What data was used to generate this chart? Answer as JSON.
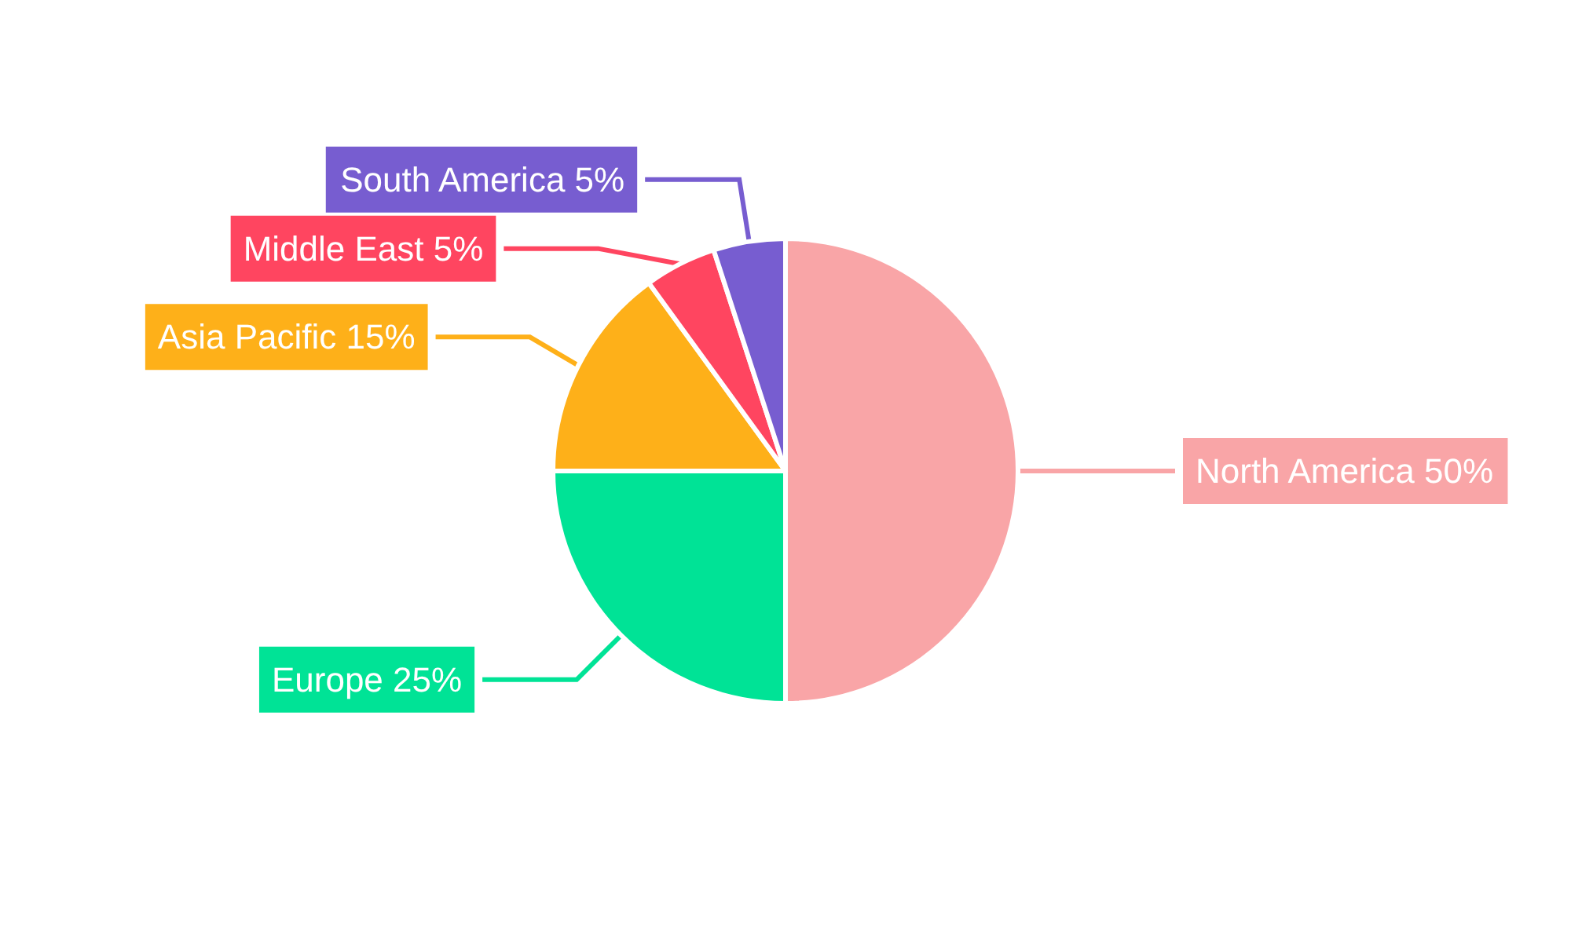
{
  "chart_data": {
    "type": "pie",
    "categories": [
      "North America",
      "Europe",
      "Asia Pacific",
      "Middle East",
      "South America"
    ],
    "values": [
      50,
      25,
      15,
      5,
      5
    ],
    "value_labels": [
      "50%",
      "25%",
      "15%",
      "5%",
      "5%"
    ],
    "colors": [
      "#f9a5a7",
      "#00e396",
      "#feb019",
      "#ff4560",
      "#775dd0"
    ]
  }
}
